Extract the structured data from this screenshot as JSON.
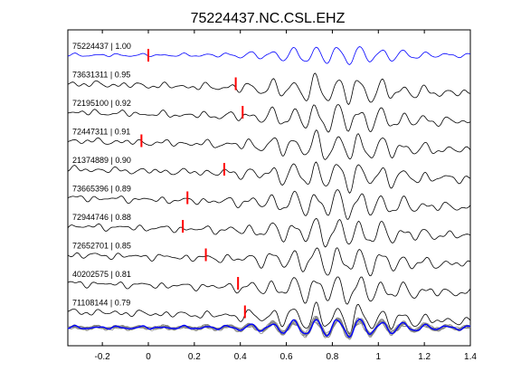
{
  "chart_data": {
    "type": "line",
    "title": "75224437.NC.CSL.EHZ",
    "xlabel": "",
    "ylabel": "",
    "xlim": [
      -0.35,
      1.4
    ],
    "x_ticks": [
      "-0.2",
      "0",
      "0.2",
      "0.4",
      "0.6",
      "0.8",
      "1",
      "1.2",
      "1.4"
    ],
    "grid": false,
    "colors": {
      "reference": "#0000ff",
      "trace": "#000000",
      "pick": "#ff0000",
      "stack": "#7f7f7f"
    },
    "series": [
      {
        "label": "75224437 | 1.00",
        "id": "75224437",
        "corr": 1.0,
        "pick": 0.0
      },
      {
        "label": "73631311 | 0.95",
        "id": "73631311",
        "corr": 0.95,
        "pick": 0.38
      },
      {
        "label": "72195100 | 0.92",
        "id": "72195100",
        "corr": 0.92,
        "pick": 0.41
      },
      {
        "label": "72447311 | 0.91",
        "id": "72447311",
        "corr": 0.91,
        "pick": -0.03
      },
      {
        "label": "21374889 | 0.90",
        "id": "21374889",
        "corr": 0.9,
        "pick": 0.33
      },
      {
        "label": "73665396 | 0.89",
        "id": "73665396",
        "corr": 0.89,
        "pick": 0.17
      },
      {
        "label": "72944746 | 0.88",
        "id": "72944746",
        "corr": 0.88,
        "pick": 0.15
      },
      {
        "label": "72652701 | 0.85",
        "id": "72652701",
        "corr": 0.85,
        "pick": 0.25
      },
      {
        "label": "40202575 | 0.81",
        "id": "40202575",
        "corr": 0.81,
        "pick": 0.39
      },
      {
        "label": "71108144 | 0.79",
        "id": "71108144",
        "corr": 0.79,
        "pick": 0.42
      }
    ],
    "stack": {
      "present": true
    }
  }
}
